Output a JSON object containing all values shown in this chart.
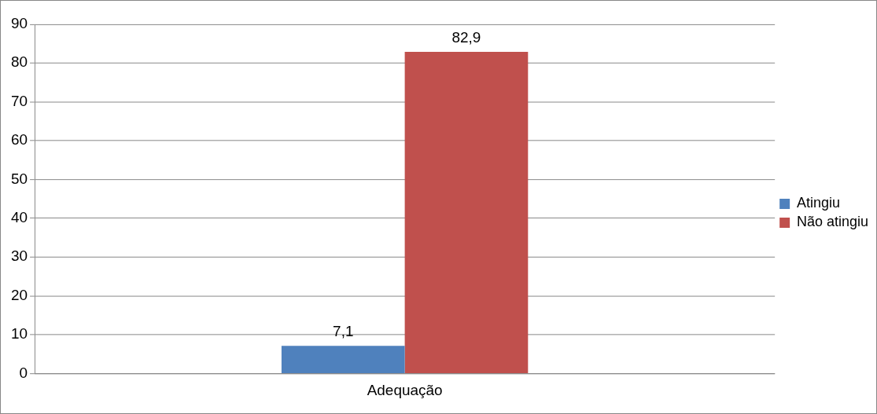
{
  "chart_data": {
    "type": "bar",
    "categories": [
      "Adequação"
    ],
    "series": [
      {
        "name": "Atingiu",
        "color": "#4f81bd",
        "values": [
          7.1
        ],
        "value_labels": [
          "7,1"
        ]
      },
      {
        "name": "Não atingiu",
        "color": "#c0504d",
        "values": [
          82.9
        ],
        "value_labels": [
          "82,9"
        ]
      }
    ],
    "ylim": [
      0,
      90
    ],
    "yticks": [
      0,
      10,
      20,
      30,
      40,
      50,
      60,
      70,
      80,
      90
    ],
    "grid": "y",
    "legend": "right"
  }
}
